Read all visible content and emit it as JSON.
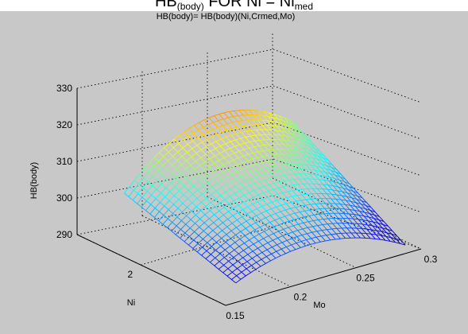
{
  "figure": {
    "title_main": "HB",
    "title_sub": "(body)",
    "title_mid": " FOR Ni = Ni",
    "title_sub2": "med"
  },
  "chart_data": {
    "type": "surface",
    "title": "HB(body)= HB(body)(Ni,Crmed,Mo)",
    "xlabel": "Mo",
    "ylabel": "Ni",
    "zlabel": "HB(body)",
    "x_ticks": [
      "0.15",
      "0.2",
      "0.25",
      "0.3"
    ],
    "y_ticks": [
      "2"
    ],
    "z_ticks": [
      "290",
      "300",
      "310",
      "320",
      "330"
    ],
    "xlim": [
      0.15,
      0.3
    ],
    "zlim": [
      290,
      330
    ],
    "grid": true,
    "colormap": "jet",
    "surface": {
      "mo_range": [
        0.17,
        0.3
      ],
      "ni_range": [
        1.35,
        2.4
      ],
      "corner_values": {
        "mo_low_ni_low": 292,
        "mo_high_ni_low": 289,
        "mo_low_ni_high": 302,
        "mo_high_ni_high": 308
      },
      "peak_value": 326
    }
  }
}
